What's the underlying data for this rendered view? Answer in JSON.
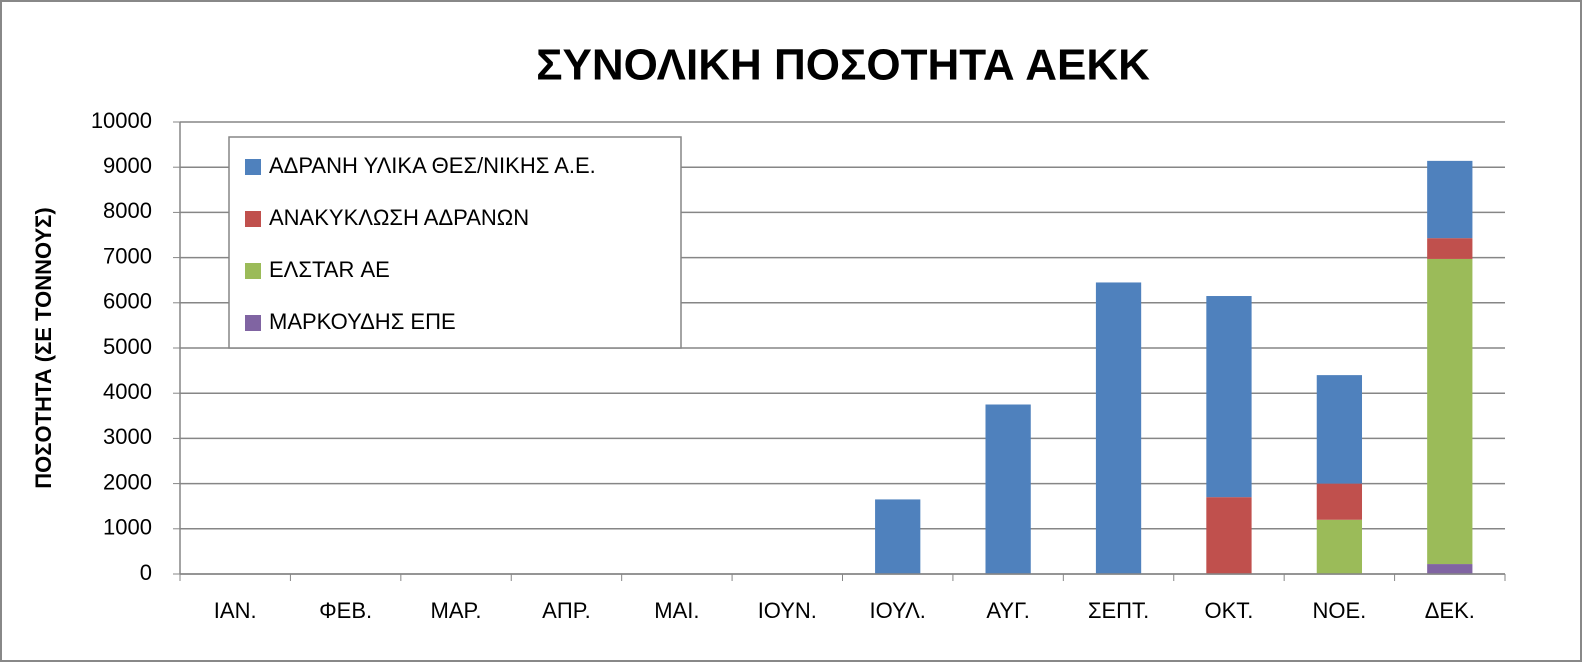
{
  "chart_data": {
    "type": "stacked_bar",
    "title": "ΣΥΝΟΛΙΚΗ ΠΟΣΟΤΗΤΑ ΑΕΚΚ",
    "y_label": "ΠΟΣΟΤΗΤΑ (ΣΕ ΤΟΝΝΟΥΣ)",
    "categories": [
      "ΙΑΝ.",
      "ΦΕΒ.",
      "ΜΑΡ.",
      "ΑΠΡ.",
      "ΜΑΙ.",
      "ΙΟΥΝ.",
      "ΙΟΥΛ.",
      "ΑΥΓ.",
      "ΣΕΠΤ.",
      "ΟΚΤ.",
      "ΝΟΕ.",
      "ΔΕΚ."
    ],
    "series": [
      {
        "name": "ΑΔΡΑΝΗ ΥΛΙΚΑ ΘΕΣ/ΝΙΚΗΣ Α.Ε.",
        "color": "#4f81bd",
        "values": [
          0,
          0,
          0,
          0,
          0,
          0,
          1650,
          3750,
          6450,
          4450,
          2400,
          1710
        ]
      },
      {
        "name": "ΑΝΑΚΥΚΛΩΣΗ ΑΔΡΑΝΩΝ",
        "color": "#c0504d",
        "values": [
          0,
          0,
          0,
          0,
          0,
          0,
          0,
          0,
          0,
          1700,
          800,
          460
        ]
      },
      {
        "name": "ΕΛΣΤΑR ΑΕ",
        "color": "#9bbb59",
        "values": [
          0,
          0,
          0,
          0,
          0,
          0,
          0,
          0,
          0,
          0,
          1200,
          6750
        ]
      },
      {
        "name": "ΜΑΡΚΟΥΔΗΣ ΕΠΕ",
        "color": "#8064a2",
        "values": [
          0,
          0,
          0,
          0,
          0,
          0,
          0,
          0,
          0,
          0,
          0,
          220
        ]
      }
    ],
    "stack_order": "bottom_is_last",
    "ylim": [
      0,
      10000
    ],
    "yticks": [
      0,
      1000,
      2000,
      3000,
      4000,
      5000,
      6000,
      7000,
      8000,
      9000,
      10000
    ],
    "grid": true,
    "legend": "top-left"
  }
}
